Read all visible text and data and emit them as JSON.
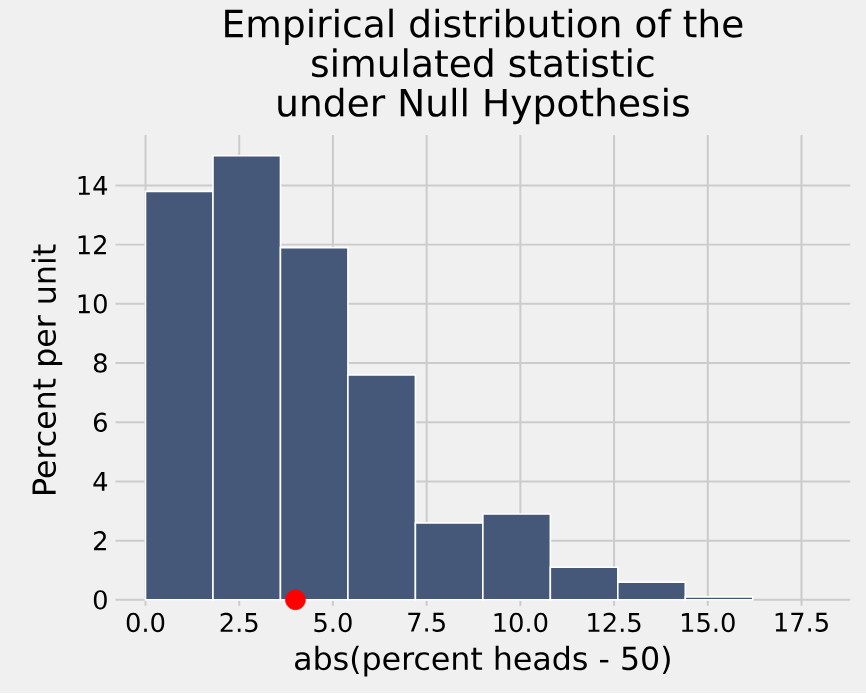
{
  "chart_data": {
    "type": "histogram",
    "title": "Empirical distribution of the\nsimulated statistic\nunder Null Hypothesis",
    "xlabel": "abs(percent heads - 50)",
    "ylabel": "Percent per unit",
    "bins": [
      0,
      1.8,
      3.6,
      5.4,
      7.2,
      9.0,
      10.8,
      12.6,
      14.4,
      16.2
    ],
    "values": [
      13.8,
      15.0,
      11.9,
      7.6,
      2.6,
      2.9,
      1.1,
      0.6,
      0.1
    ],
    "color": "#46587a",
    "series": [
      {
        "type": "scatter",
        "x": [
          4
        ],
        "values": [
          0
        ],
        "color": "#ff0000",
        "marker": "circle"
      }
    ],
    "xlim": [
      -0.8,
      18.8
    ],
    "ylim": [
      -0.2,
      15.7
    ],
    "xticks": [
      {
        "value": 0,
        "label": "0.0"
      },
      2.5,
      {
        "value": 5,
        "label": "5.0"
      },
      7.5,
      {
        "value": 10,
        "label": "10.0"
      },
      12.5,
      {
        "value": 15,
        "label": "15.0"
      },
      17.5
    ],
    "yticks": [
      0,
      2,
      4,
      6,
      8,
      10,
      12,
      14
    ],
    "grid": true
  }
}
